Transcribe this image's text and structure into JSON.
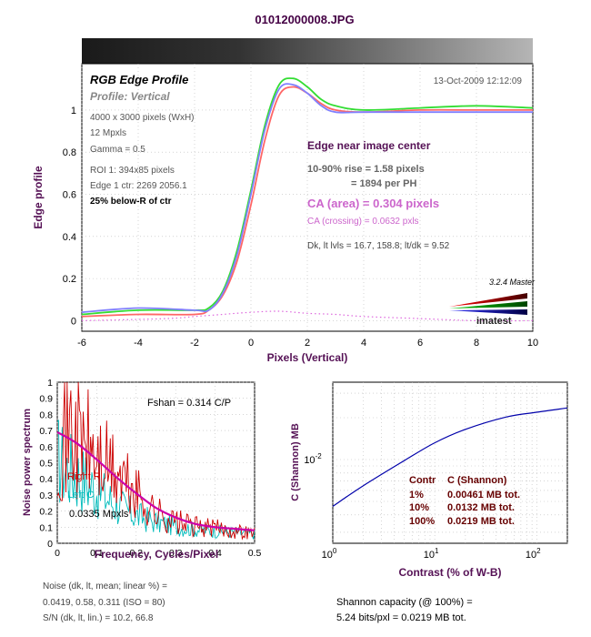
{
  "file_title": "01012000008.JPG",
  "edge_panel": {
    "title": "RGB Edge Profile",
    "subtitle": "Profile: Vertical",
    "date": "13-Oct-2009 12:12:09",
    "info_lines": [
      "4000 x 3000 pixels (WxH)",
      "12 Mpxls",
      "Gamma = 0.5",
      "ROI 1: 394x85 pixels",
      "Edge 1 ctr: 2269  2056.1"
    ],
    "position_note": "25% below-R of ctr",
    "edge_heading": "Edge near image center",
    "rise_line": "10-90% rise = 1.58 pixels",
    "per_ph_line": "= 1894 per PH",
    "ca_area": "CA (area) = 0.304 pixels",
    "ca_crossing": "CA (crossing) = 0.0632 pxls",
    "levels_line": "Dk, lt lvls = 16.7, 158.8;  lt/dk = 9.52",
    "version": "3.2.4  Master",
    "logo_text": "imatest"
  },
  "noise_panel": {
    "fshan": "Fshan = 0.314 C/P",
    "legend_right": "Right R",
    "legend_left": "Left C",
    "mpxls": "0.0335 Mpxls",
    "footer_lines": [
      "Noise (dk, lt, mean; linear %) =",
      "0.0419,  0.58,  0.311  (ISO =  80)",
      "S/N (dk, lt, lin.) = 10.2,  66.8"
    ]
  },
  "shannon_panel": {
    "table_header": [
      "Contr",
      "C (Shannon)"
    ],
    "table_rows": [
      [
        "1%",
        "0.00461 MB tot."
      ],
      [
        "10%",
        "0.0132 MB tot."
      ],
      [
        "100%",
        "0.0219 MB tot."
      ]
    ],
    "footer_lines": [
      "Shannon capacity (@ 100%) =",
      "5.24 bits/pxl = 0.0219 MB tot."
    ]
  },
  "colors": {
    "red": "#ff6666",
    "green": "#33dd33",
    "blue": "#8080ff",
    "magenta_dots": "#dd66dd",
    "title_purple": "#440044",
    "axis_label_purple": "#551155",
    "ca_pink": "#cc66cc",
    "noise_red": "#cc0000",
    "noise_cyan": "#00bbbb",
    "noise_fit": "#cc00aa",
    "shannon_line": "#0000aa",
    "table_text": "#660000"
  },
  "chart_data": [
    {
      "type": "line",
      "title": "RGB Edge Profile",
      "xlabel": "Pixels (Vertical)",
      "ylabel": "Edge profile",
      "xlim": [
        -6,
        10
      ],
      "ylim": [
        -0.05,
        1.22
      ],
      "xticks": [
        -6,
        -4,
        -2,
        0,
        2,
        4,
        6,
        8,
        10
      ],
      "yticks": [
        0,
        0.2,
        0.4,
        0.6,
        0.8,
        1
      ],
      "series": [
        {
          "name": "Red",
          "x": [
            -6,
            -4,
            -2,
            -1.5,
            -1,
            -0.5,
            0,
            0.5,
            1,
            1.5,
            2,
            2.5,
            3,
            4,
            6,
            8,
            10
          ],
          "y": [
            0.02,
            0.03,
            0.03,
            0.05,
            0.12,
            0.28,
            0.55,
            0.86,
            1.07,
            1.11,
            1.08,
            1.03,
            1.0,
            0.99,
            1.0,
            1.0,
            1.0
          ]
        },
        {
          "name": "Green",
          "x": [
            -6,
            -4,
            -2,
            -1.5,
            -1,
            -0.5,
            0,
            0.5,
            1,
            1.5,
            2,
            2.5,
            3,
            4,
            6,
            8,
            10
          ],
          "y": [
            0.03,
            0.05,
            0.05,
            0.06,
            0.14,
            0.33,
            0.62,
            0.93,
            1.12,
            1.15,
            1.11,
            1.05,
            1.02,
            1.0,
            1.01,
            1.02,
            1.01
          ]
        },
        {
          "name": "Blue",
          "x": [
            -6,
            -4,
            -2,
            -1.5,
            -1,
            -0.5,
            0,
            0.5,
            1,
            1.5,
            2,
            2.5,
            3,
            4,
            6,
            8,
            10
          ],
          "y": [
            0.04,
            0.06,
            0.05,
            0.05,
            0.13,
            0.31,
            0.6,
            0.91,
            1.1,
            1.12,
            1.08,
            1.02,
            0.99,
            0.99,
            0.99,
            0.99,
            0.99
          ]
        },
        {
          "name": "Difference",
          "x": [
            -6,
            -3,
            -2,
            -1,
            0,
            1,
            2,
            3,
            4,
            6,
            8,
            10
          ],
          "y": [
            0.0,
            0.01,
            0.02,
            0.03,
            0.04,
            0.045,
            0.035,
            0.03,
            0.02,
            0.01,
            0.0,
            0.0
          ]
        }
      ]
    },
    {
      "type": "line",
      "xlabel": "Frequency, Cycles/Pixel",
      "ylabel": "Noise power spectrum",
      "xlim": [
        0,
        0.5
      ],
      "ylim": [
        0,
        1
      ],
      "xticks": [
        0,
        0.1,
        0.2,
        0.3,
        0.4,
        0.5
      ],
      "yticks": [
        0,
        0.1,
        0.2,
        0.3,
        0.4,
        0.5,
        0.6,
        0.7,
        0.8,
        0.9,
        1
      ],
      "series": [
        {
          "name": "Right R",
          "x": [
            0,
            0.02,
            0.05,
            0.1,
            0.15,
            0.2,
            0.25,
            0.3,
            0.35,
            0.4,
            0.45,
            0.5
          ],
          "y": [
            0.75,
            0.78,
            0.72,
            0.55,
            0.45,
            0.32,
            0.2,
            0.14,
            0.11,
            0.1,
            0.08,
            0.07
          ]
        },
        {
          "name": "Left C",
          "x": [
            0,
            0.02,
            0.05,
            0.1,
            0.15,
            0.2,
            0.25,
            0.3,
            0.35,
            0.4,
            0.45,
            0.5
          ],
          "y": [
            0.55,
            0.5,
            0.45,
            0.35,
            0.25,
            0.18,
            0.14,
            0.11,
            0.09,
            0.08,
            0.07,
            0.06
          ]
        },
        {
          "name": "Fit",
          "x": [
            0,
            0.05,
            0.1,
            0.15,
            0.2,
            0.25,
            0.3,
            0.35,
            0.4,
            0.45,
            0.5
          ],
          "y": [
            0.69,
            0.62,
            0.52,
            0.41,
            0.31,
            0.22,
            0.16,
            0.12,
            0.1,
            0.09,
            0.08
          ]
        }
      ]
    },
    {
      "type": "line",
      "xlabel": "Contrast (% of W-B)",
      "ylabel": "C (Shannon) MB",
      "x_scale": "log",
      "y_scale": "log",
      "xlim": [
        1,
        200
      ],
      "ylim": [
        0.0025,
        0.036
      ],
      "xtick_labels": [
        "10^0",
        "10^1",
        "10^2"
      ],
      "ytick_labels": [
        "10^-2"
      ],
      "series": [
        {
          "name": "Shannon",
          "x": [
            1,
            2,
            5,
            10,
            20,
            50,
            100,
            200
          ],
          "y": [
            0.00461,
            0.0065,
            0.0098,
            0.0132,
            0.0165,
            0.0202,
            0.0219,
            0.0235
          ]
        }
      ]
    }
  ]
}
